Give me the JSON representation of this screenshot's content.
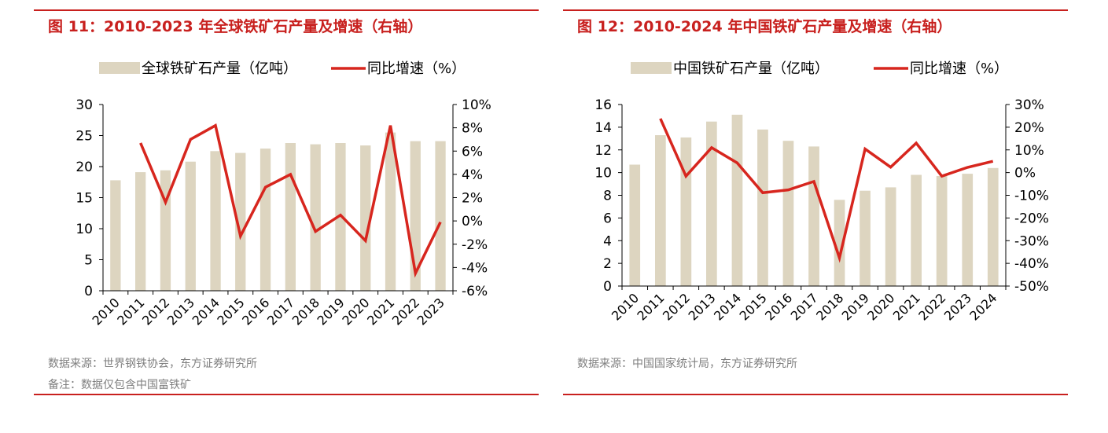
{
  "panels": [
    {
      "title": "图 11：2010-2023 年全球铁矿石产量及增速（右轴）",
      "source": "数据来源：世界钢铁协会，东方证券研究所",
      "note": "备注：数据仅包含中国富铁矿",
      "chart_data": {
        "type": "bar",
        "categories": [
          "2010",
          "2011",
          "2012",
          "2013",
          "2014",
          "2015",
          "2016",
          "2017",
          "2018",
          "2019",
          "2020",
          "2021",
          "2022",
          "2023"
        ],
        "series": [
          {
            "name": "全球铁矿石产量（亿吨）",
            "type": "bar",
            "axis": "left",
            "values": [
              17.8,
              19.1,
              19.4,
              20.8,
              22.5,
              22.2,
              22.9,
              23.8,
              23.6,
              23.8,
              23.4,
              25.5,
              24.1,
              24.1
            ]
          },
          {
            "name": "同比增速（%）",
            "type": "line",
            "axis": "right",
            "values": [
              null,
              6.7,
              1.6,
              7.0,
              8.2,
              -1.3,
              2.9,
              4.0,
              -0.9,
              0.5,
              -1.7,
              8.2,
              -4.5,
              -0.1
            ]
          }
        ],
        "y_left": {
          "min": 0,
          "max": 30,
          "step": 5,
          "ticks": [
            "0",
            "5",
            "10",
            "15",
            "20",
            "25",
            "30"
          ]
        },
        "y_right": {
          "min": -6,
          "max": 10,
          "step": 2,
          "ticks": [
            "-6%",
            "-4%",
            "-2%",
            "0%",
            "2%",
            "4%",
            "6%",
            "8%",
            "10%"
          ]
        },
        "legend_position": "top-center",
        "colors": {
          "bar": "#ddd5c0",
          "line": "#d7261e"
        }
      }
    },
    {
      "title": "图 12：2010-2024 年中国铁矿石产量及增速（右轴）",
      "source": "数据来源：中国国家统计局，东方证券研究所",
      "note": "",
      "chart_data": {
        "type": "bar",
        "categories": [
          "2010",
          "2011",
          "2012",
          "2013",
          "2014",
          "2015",
          "2016",
          "2017",
          "2018",
          "2019",
          "2020",
          "2021",
          "2022",
          "2023",
          "2024"
        ],
        "series": [
          {
            "name": "中国铁矿石产量（亿吨）",
            "type": "bar",
            "axis": "left",
            "values": [
              10.7,
              13.3,
              13.1,
              14.5,
              15.1,
              13.8,
              12.8,
              12.3,
              7.6,
              8.4,
              8.7,
              9.8,
              9.7,
              9.9,
              10.4
            ]
          },
          {
            "name": "同比增速（%）",
            "type": "line",
            "axis": "right",
            "values": [
              null,
              23.8,
              -1.6,
              11.0,
              4.3,
              -8.9,
              -7.6,
              -3.9,
              -37.6,
              10.4,
              2.4,
              13.0,
              -1.6,
              2.3,
              5.0
            ]
          }
        ],
        "y_left": {
          "min": 0,
          "max": 16,
          "step": 2,
          "ticks": [
            "0",
            "2",
            "4",
            "6",
            "8",
            "10",
            "12",
            "14",
            "16"
          ]
        },
        "y_right": {
          "min": -50,
          "max": 30,
          "step": 10,
          "ticks": [
            "-50%",
            "-40%",
            "-30%",
            "-20%",
            "-10%",
            "0%",
            "10%",
            "20%",
            "30%"
          ]
        },
        "legend_position": "top-center",
        "colors": {
          "bar": "#ddd5c0",
          "line": "#d7261e"
        }
      }
    }
  ]
}
